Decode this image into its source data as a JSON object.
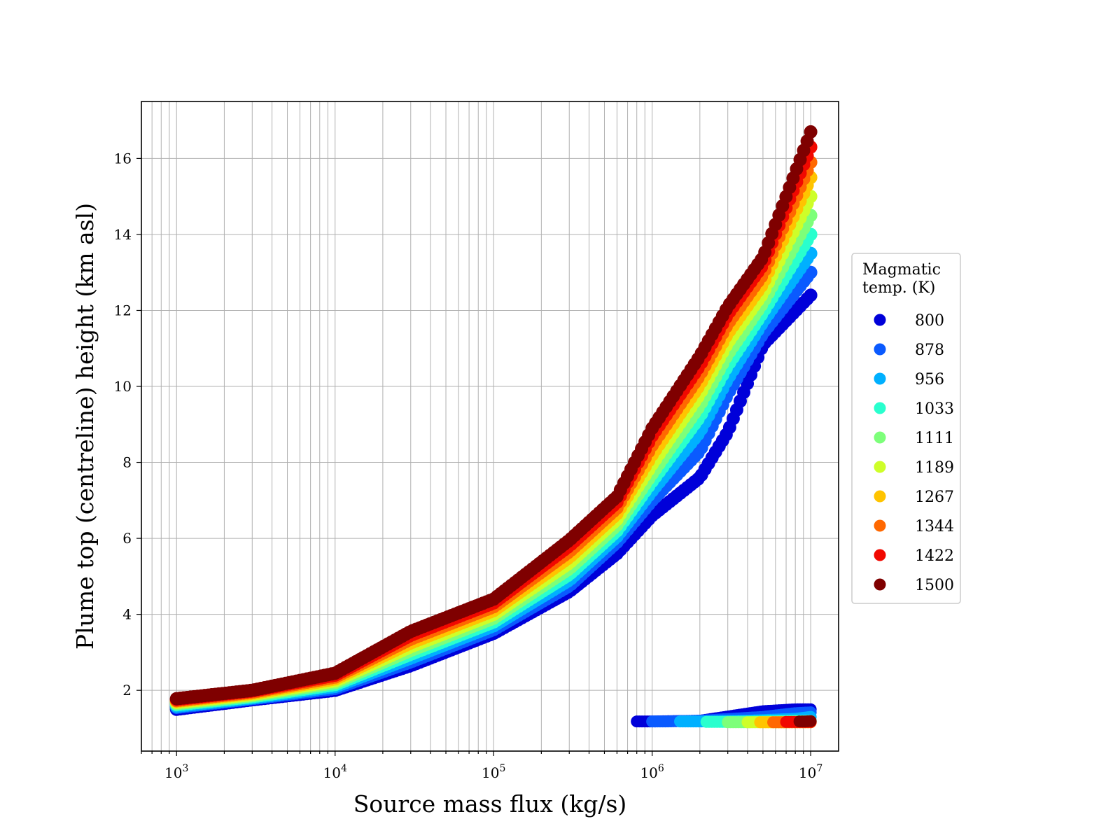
{
  "chart_data": {
    "type": "scatter",
    "title": "",
    "xlabel": "Source mass flux (kg/s)",
    "ylabel": "Plume top (centreline) height (km asl)",
    "xscale": "log",
    "xlim": [
      600,
      15000000
    ],
    "ylim": [
      0.4,
      17.5
    ],
    "grid": "on",
    "x_ticks": [
      {
        "base": "10",
        "exp": "3",
        "value": 1000
      },
      {
        "base": "10",
        "exp": "4",
        "value": 10000
      },
      {
        "base": "10",
        "exp": "5",
        "value": 100000
      },
      {
        "base": "10",
        "exp": "6",
        "value": 1000000
      },
      {
        "base": "10",
        "exp": "7",
        "value": 10000000
      }
    ],
    "y_ticks": [
      "2",
      "4",
      "6",
      "8",
      "10",
      "12",
      "14",
      "16"
    ],
    "legend": {
      "title_line1": "Magmatic",
      "title_line2": "temp. (K)",
      "placement": "right, outside plot"
    },
    "series": [
      {
        "name": "800",
        "color": "#0000d9",
        "x": [
          1000,
          3000,
          10000,
          30000,
          100000,
          300000,
          600000,
          1000000,
          2000000,
          3000000,
          5000000,
          10000000
        ],
        "y": [
          1.5,
          1.75,
          2.0,
          2.65,
          3.5,
          4.6,
          5.6,
          6.6,
          7.6,
          8.8,
          11.1,
          12.4
        ]
      },
      {
        "name": "878",
        "color": "#0a5aff",
        "x": [
          1000,
          3000,
          10000,
          30000,
          100000,
          300000,
          600000,
          1000000,
          2000000,
          3000000,
          5000000,
          10000000
        ],
        "y": [
          1.55,
          1.78,
          2.05,
          2.75,
          3.6,
          4.75,
          5.9,
          7.0,
          8.3,
          9.8,
          11.4,
          13.0
        ]
      },
      {
        "name": "956",
        "color": "#00b0ff",
        "x": [
          1000,
          3000,
          10000,
          30000,
          100000,
          300000,
          600000,
          1000000,
          2000000,
          3000000,
          5000000,
          10000000
        ],
        "y": [
          1.58,
          1.8,
          2.1,
          2.85,
          3.7,
          4.9,
          6.05,
          7.25,
          8.8,
          10.2,
          11.7,
          13.5
        ]
      },
      {
        "name": "1033",
        "color": "#29ffce",
        "x": [
          1000,
          3000,
          10000,
          30000,
          100000,
          300000,
          600000,
          1000000,
          2000000,
          3000000,
          5000000,
          10000000
        ],
        "y": [
          1.62,
          1.83,
          2.15,
          2.95,
          3.8,
          5.05,
          6.2,
          7.5,
          9.2,
          10.55,
          11.95,
          14.0
        ]
      },
      {
        "name": "1111",
        "color": "#7dff7a",
        "x": [
          1000,
          3000,
          10000,
          30000,
          100000,
          300000,
          600000,
          1000000,
          2000000,
          3000000,
          5000000,
          10000000
        ],
        "y": [
          1.65,
          1.86,
          2.2,
          3.05,
          3.9,
          5.2,
          6.35,
          7.7,
          9.5,
          10.85,
          12.2,
          14.5
        ]
      },
      {
        "name": "1189",
        "color": "#cefe29",
        "x": [
          1000,
          3000,
          10000,
          30000,
          100000,
          300000,
          600000,
          1000000,
          2000000,
          3000000,
          5000000,
          10000000
        ],
        "y": [
          1.68,
          1.89,
          2.25,
          3.15,
          4.0,
          5.35,
          6.5,
          7.95,
          9.8,
          11.15,
          12.45,
          15.0
        ]
      },
      {
        "name": "1267",
        "color": "#ffc400",
        "x": [
          1000,
          3000,
          10000,
          30000,
          100000,
          300000,
          600000,
          1000000,
          2000000,
          3000000,
          5000000,
          10000000
        ],
        "y": [
          1.71,
          1.92,
          2.3,
          3.25,
          4.1,
          5.5,
          6.65,
          8.2,
          10.05,
          11.4,
          12.7,
          15.5
        ]
      },
      {
        "name": "1344",
        "color": "#ff6800",
        "x": [
          1000,
          3000,
          10000,
          30000,
          100000,
          300000,
          600000,
          1000000,
          2000000,
          3000000,
          5000000,
          10000000
        ],
        "y": [
          1.73,
          1.95,
          2.35,
          3.35,
          4.2,
          5.65,
          6.8,
          8.45,
          10.3,
          11.65,
          12.95,
          15.9
        ]
      },
      {
        "name": "1422",
        "color": "#f10800",
        "x": [
          1000,
          3000,
          10000,
          30000,
          100000,
          300000,
          600000,
          1000000,
          2000000,
          3000000,
          5000000,
          10000000
        ],
        "y": [
          1.76,
          1.98,
          2.4,
          3.45,
          4.3,
          5.8,
          6.95,
          8.7,
          10.55,
          11.9,
          13.2,
          16.3
        ]
      },
      {
        "name": "1500",
        "color": "#7f0000",
        "x": [
          1000,
          3000,
          10000,
          30000,
          100000,
          300000,
          600000,
          1000000,
          2000000,
          3000000,
          5000000,
          10000000
        ],
        "y": [
          1.78,
          2.0,
          2.45,
          3.55,
          4.4,
          5.95,
          7.1,
          8.9,
          10.8,
          12.1,
          13.4,
          16.7
        ]
      }
    ],
    "collapsed_branch": [
      {
        "name": "800",
        "color": "#0000d9",
        "x": [
          800000,
          1000000,
          2000000,
          5000000,
          8000000,
          10000000
        ],
        "y": [
          1.18,
          1.18,
          1.2,
          1.45,
          1.5,
          1.5
        ]
      },
      {
        "name": "878",
        "color": "#0a5aff",
        "x": [
          1000000,
          1200000,
          2000000,
          5000000,
          8000000,
          10000000
        ],
        "y": [
          1.18,
          1.18,
          1.2,
          1.3,
          1.4,
          1.42
        ]
      },
      {
        "name": "956",
        "color": "#00b0ff",
        "x": [
          1500000,
          2000000,
          4000000,
          8000000,
          10000000
        ],
        "y": [
          1.18,
          1.18,
          1.2,
          1.25,
          1.3
        ]
      },
      {
        "name": "1033",
        "color": "#29ffce",
        "x": [
          2200000,
          3000000,
          5000000,
          8000000,
          10000000
        ],
        "y": [
          1.17,
          1.17,
          1.18,
          1.2,
          1.2
        ]
      },
      {
        "name": "1111",
        "color": "#7dff7a",
        "x": [
          3000000,
          4000000,
          6000000,
          10000000
        ],
        "y": [
          1.16,
          1.16,
          1.17,
          1.18
        ]
      },
      {
        "name": "1189",
        "color": "#cefe29",
        "x": [
          4000000,
          5000000,
          7000000,
          10000000
        ],
        "y": [
          1.16,
          1.16,
          1.16,
          1.17
        ]
      },
      {
        "name": "1267",
        "color": "#ffc400",
        "x": [
          4800000,
          6000000,
          8000000,
          10000000
        ],
        "y": [
          1.16,
          1.16,
          1.16,
          1.16
        ]
      },
      {
        "name": "1344",
        "color": "#ff6800",
        "x": [
          5800000,
          7000000,
          9000000,
          10000000
        ],
        "y": [
          1.16,
          1.16,
          1.16,
          1.16
        ]
      },
      {
        "name": "1422",
        "color": "#f10800",
        "x": [
          7000000,
          8000000,
          9500000,
          10000000
        ],
        "y": [
          1.17,
          1.17,
          1.17,
          1.17
        ]
      },
      {
        "name": "1500",
        "color": "#7f0000",
        "x": [
          8500000,
          9200000,
          10000000
        ],
        "y": [
          1.18,
          1.18,
          1.19
        ]
      }
    ]
  }
}
